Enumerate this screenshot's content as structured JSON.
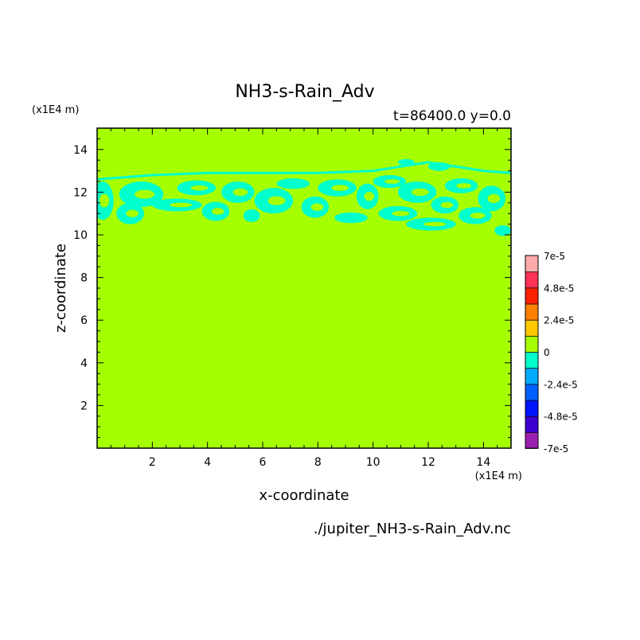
{
  "chart_data": {
    "type": "heatmap",
    "title": "NH3-s-Rain_Adv",
    "subtitle": "t=86400.0 y=0.0",
    "xlabel": "x-coordinate",
    "ylabel": "z-coordinate",
    "x_unit": "(x1E4 m)",
    "z_unit": "(x1E4 m)",
    "source": "./jupiter_NH3-s-Rain_Adv.nc",
    "xlim": [
      0,
      15
    ],
    "zlim": [
      0,
      15
    ],
    "x_ticks": [
      "2",
      "4",
      "6",
      "8",
      "10",
      "12",
      "14"
    ],
    "x_tick_values": [
      2,
      4,
      6,
      8,
      10,
      12,
      14
    ],
    "z_ticks": [
      "2",
      "4",
      "6",
      "8",
      "10",
      "12",
      "14"
    ],
    "z_tick_values": [
      2,
      4,
      6,
      8,
      10,
      12,
      14
    ],
    "background_level_color": "#a6ff00",
    "negative_region_color": "#00ffcc",
    "negative_band_z": [
      9.8,
      12.8
    ],
    "negative_patches": [
      {
        "x": 0.2,
        "z": 11.6,
        "rx": 0.4,
        "rz": 0.9
      },
      {
        "x": 1.2,
        "z": 11.0,
        "rx": 0.5,
        "rz": 0.5
      },
      {
        "x": 1.6,
        "z": 11.9,
        "rx": 0.8,
        "rz": 0.6
      },
      {
        "x": 2.9,
        "z": 11.4,
        "rx": 0.9,
        "rz": 0.3
      },
      {
        "x": 3.6,
        "z": 12.2,
        "rx": 0.7,
        "rz": 0.35
      },
      {
        "x": 4.3,
        "z": 11.1,
        "rx": 0.5,
        "rz": 0.45
      },
      {
        "x": 5.1,
        "z": 12.0,
        "rx": 0.6,
        "rz": 0.5
      },
      {
        "x": 5.6,
        "z": 10.9,
        "rx": 0.3,
        "rz": 0.3
      },
      {
        "x": 6.4,
        "z": 11.6,
        "rx": 0.7,
        "rz": 0.6
      },
      {
        "x": 7.1,
        "z": 12.4,
        "rx": 0.6,
        "rz": 0.25
      },
      {
        "x": 7.9,
        "z": 11.3,
        "rx": 0.5,
        "rz": 0.5
      },
      {
        "x": 8.7,
        "z": 12.2,
        "rx": 0.7,
        "rz": 0.4
      },
      {
        "x": 9.2,
        "z": 10.8,
        "rx": 0.6,
        "rz": 0.25
      },
      {
        "x": 9.8,
        "z": 11.8,
        "rx": 0.4,
        "rz": 0.6
      },
      {
        "x": 10.6,
        "z": 12.5,
        "rx": 0.6,
        "rz": 0.3
      },
      {
        "x": 10.9,
        "z": 11.0,
        "rx": 0.7,
        "rz": 0.35
      },
      {
        "x": 11.6,
        "z": 12.0,
        "rx": 0.7,
        "rz": 0.5
      },
      {
        "x": 12.1,
        "z": 10.5,
        "rx": 0.9,
        "rz": 0.3
      },
      {
        "x": 12.6,
        "z": 11.4,
        "rx": 0.5,
        "rz": 0.4
      },
      {
        "x": 13.2,
        "z": 12.3,
        "rx": 0.6,
        "rz": 0.35
      },
      {
        "x": 13.7,
        "z": 10.9,
        "rx": 0.6,
        "rz": 0.4
      },
      {
        "x": 14.3,
        "z": 11.7,
        "rx": 0.5,
        "rz": 0.6
      },
      {
        "x": 14.7,
        "z": 10.2,
        "rx": 0.3,
        "rz": 0.25
      },
      {
        "x": 11.2,
        "z": 13.4,
        "rx": 0.3,
        "rz": 0.15
      },
      {
        "x": 12.4,
        "z": 13.2,
        "rx": 0.4,
        "rz": 0.2
      }
    ],
    "band_edges": [
      {
        "x": 0.0,
        "z": 12.6
      },
      {
        "x": 2.0,
        "z": 12.8
      },
      {
        "x": 4.0,
        "z": 12.9
      },
      {
        "x": 6.0,
        "z": 12.9
      },
      {
        "x": 8.0,
        "z": 12.9
      },
      {
        "x": 10.0,
        "z": 13.0
      },
      {
        "x": 12.0,
        "z": 13.4
      },
      {
        "x": 14.0,
        "z": 13.0
      },
      {
        "x": 15.0,
        "z": 12.9
      }
    ],
    "colorbar": {
      "colors": [
        "#9a1fb0",
        "#3d00d0",
        "#0015ff",
        "#0060ff",
        "#00aaff",
        "#00ffcc",
        "#a6ff00",
        "#ffc800",
        "#ff8000",
        "#ff2200",
        "#ff3355",
        "#ffaaaa"
      ],
      "labels": [
        "7e-5",
        "4.8e-5",
        "2.4e-5",
        "0",
        "-2.4e-5",
        "-4.8e-5",
        "-7e-5"
      ]
    }
  }
}
